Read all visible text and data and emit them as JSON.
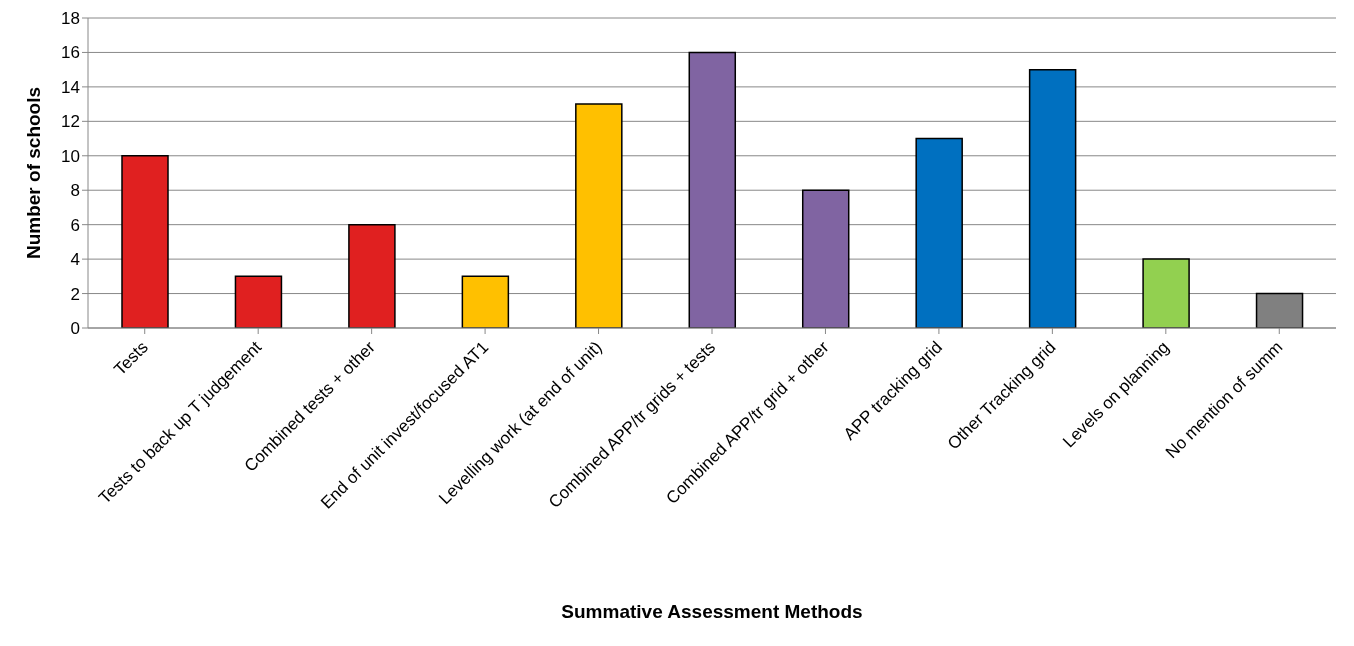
{
  "chart_data": {
    "type": "bar",
    "xlabel": "Summative Assessment Methods",
    "ylabel": "Number of schools",
    "categories": [
      "Tests",
      "Tests to back up T judgement",
      "Combined tests + other",
      "End of unit invest/focused AT1",
      "Levelling work (at end of unit)",
      "Combined APP/tr grids + tests",
      "Combined APP/tr grid + other",
      "APP tracking grid",
      "Other Tracking grid",
      "Levels on planning",
      "No mention of summ"
    ],
    "values": [
      10,
      3,
      6,
      3,
      13,
      16,
      8,
      11,
      15,
      4,
      2
    ],
    "colors": [
      "#e02020",
      "#e02020",
      "#e02020",
      "#ffc000",
      "#ffc000",
      "#8064a2",
      "#8064a2",
      "#0070c0",
      "#0070c0",
      "#92d050",
      "#808080"
    ],
    "ylim": [
      0,
      18
    ],
    "yticks": [
      0,
      2,
      4,
      6,
      8,
      10,
      12,
      14,
      16,
      18
    ],
    "grid": "y",
    "legend": false
  }
}
